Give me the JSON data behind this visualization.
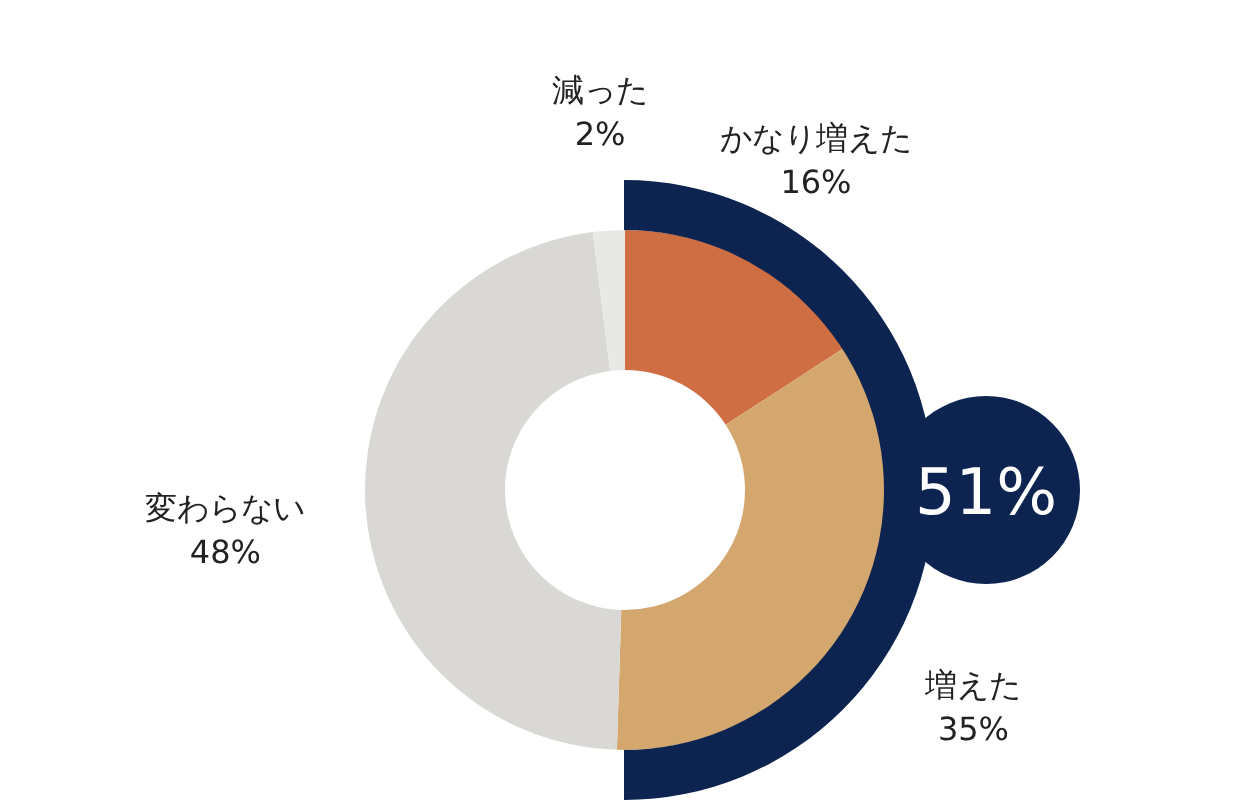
{
  "chart_data": {
    "type": "donut",
    "categories": [
      "かなり増えた",
      "増えた",
      "変わらない",
      "減った"
    ],
    "values": [
      16,
      35,
      48,
      2
    ],
    "colors": [
      "#cf6e42",
      "#d4a76e",
      "#d9d8d4",
      "#e8e8e6"
    ],
    "value_labels": [
      "16%",
      "35%",
      "48%",
      "2%"
    ],
    "legend": false,
    "annotations": [
      "51%"
    ]
  }
}
